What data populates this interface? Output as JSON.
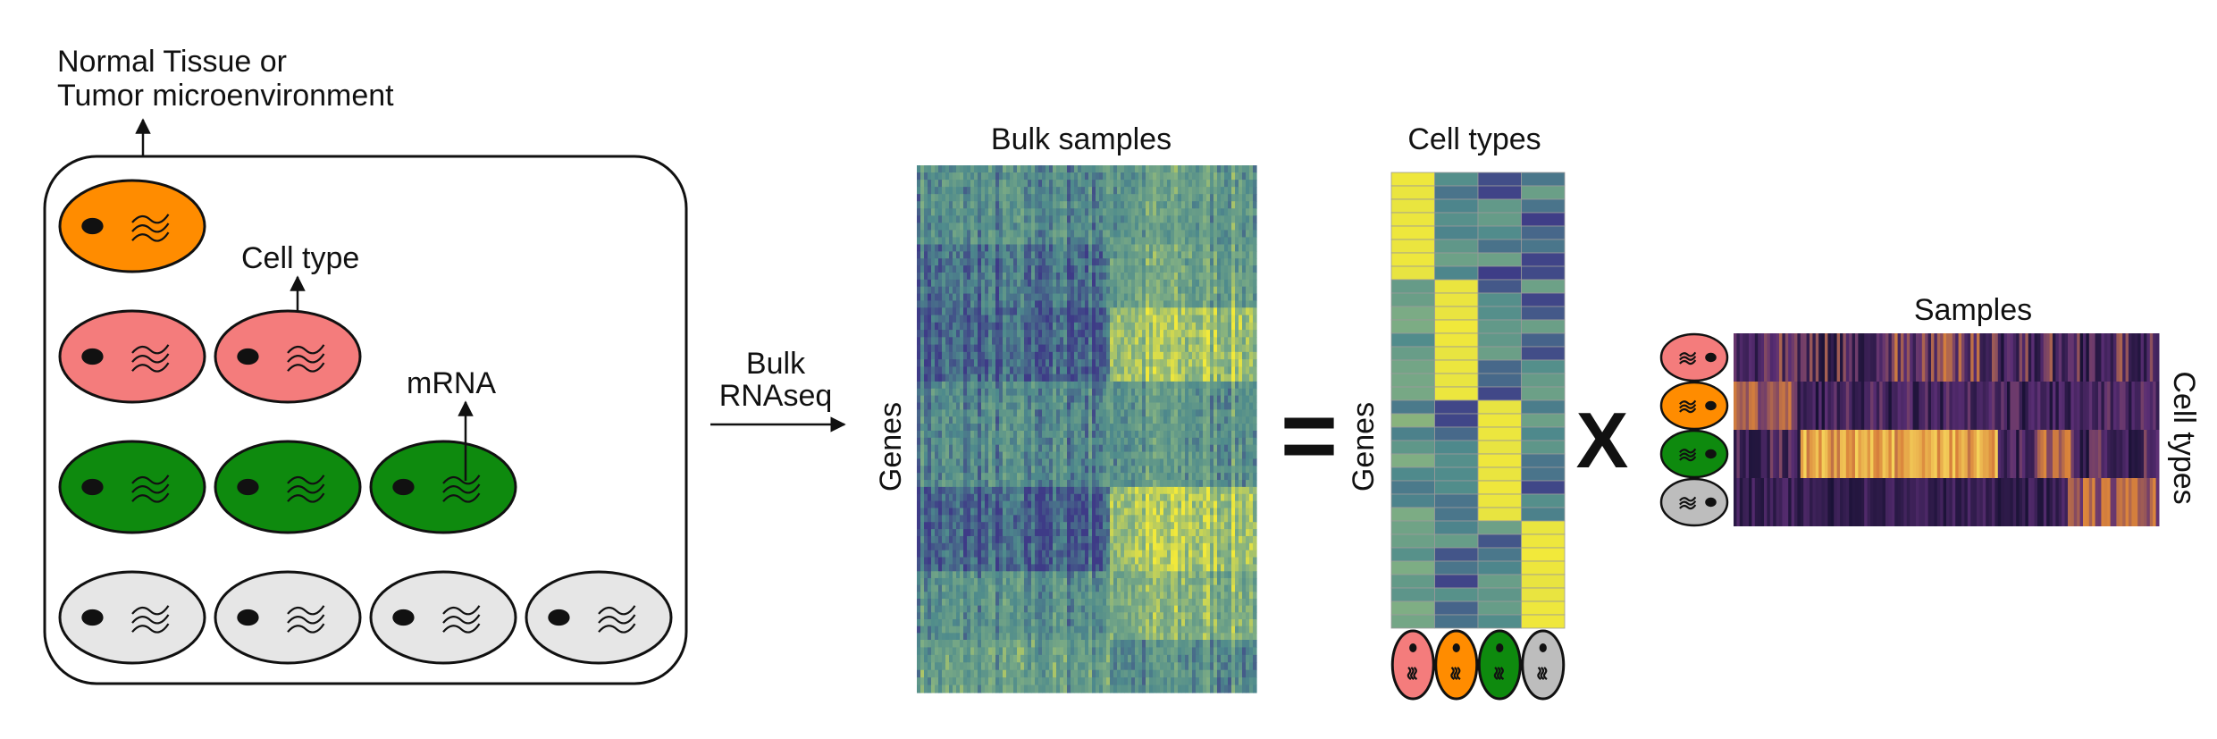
{
  "tissue": {
    "title_line1": "Normal Tissue or",
    "title_line2": "Tumor microenvironment",
    "cell_type_label": "Cell type",
    "mrna_label": "mRNA"
  },
  "arrow": {
    "label_line1": "Bulk",
    "label_line2": "RNAseq"
  },
  "bulk": {
    "title": "Bulk samples",
    "ylabel": "Genes"
  },
  "equals_sign": "=",
  "signature": {
    "title": "Cell types",
    "ylabel": "Genes"
  },
  "times_sign": "X",
  "proportions": {
    "title": "Samples",
    "ylabel": "Cell types"
  },
  "colors": {
    "orange": "#FF8C00",
    "salmon": "#F47C7C",
    "green": "#0E8A0E",
    "grey": "#E6E6E6",
    "grey_dark": "#BDBDBD",
    "viridis_dark": "#3E3B87",
    "viridis_teal": "#4E8A8C",
    "viridis_green": "#7FAE84",
    "viridis_yellow": "#F2E93A",
    "inferno_dark": "#1A1236",
    "inferno_purple": "#5A2E74",
    "inferno_orange": "#D9823B",
    "inferno_yellow": "#F6D45B"
  },
  "cell_types": [
    {
      "name": "orange",
      "color": "#FF8C00"
    },
    {
      "name": "salmon",
      "color": "#F47C7C"
    },
    {
      "name": "green",
      "color": "#0E8A0E"
    },
    {
      "name": "grey",
      "color": "#E6E6E6"
    }
  ]
}
